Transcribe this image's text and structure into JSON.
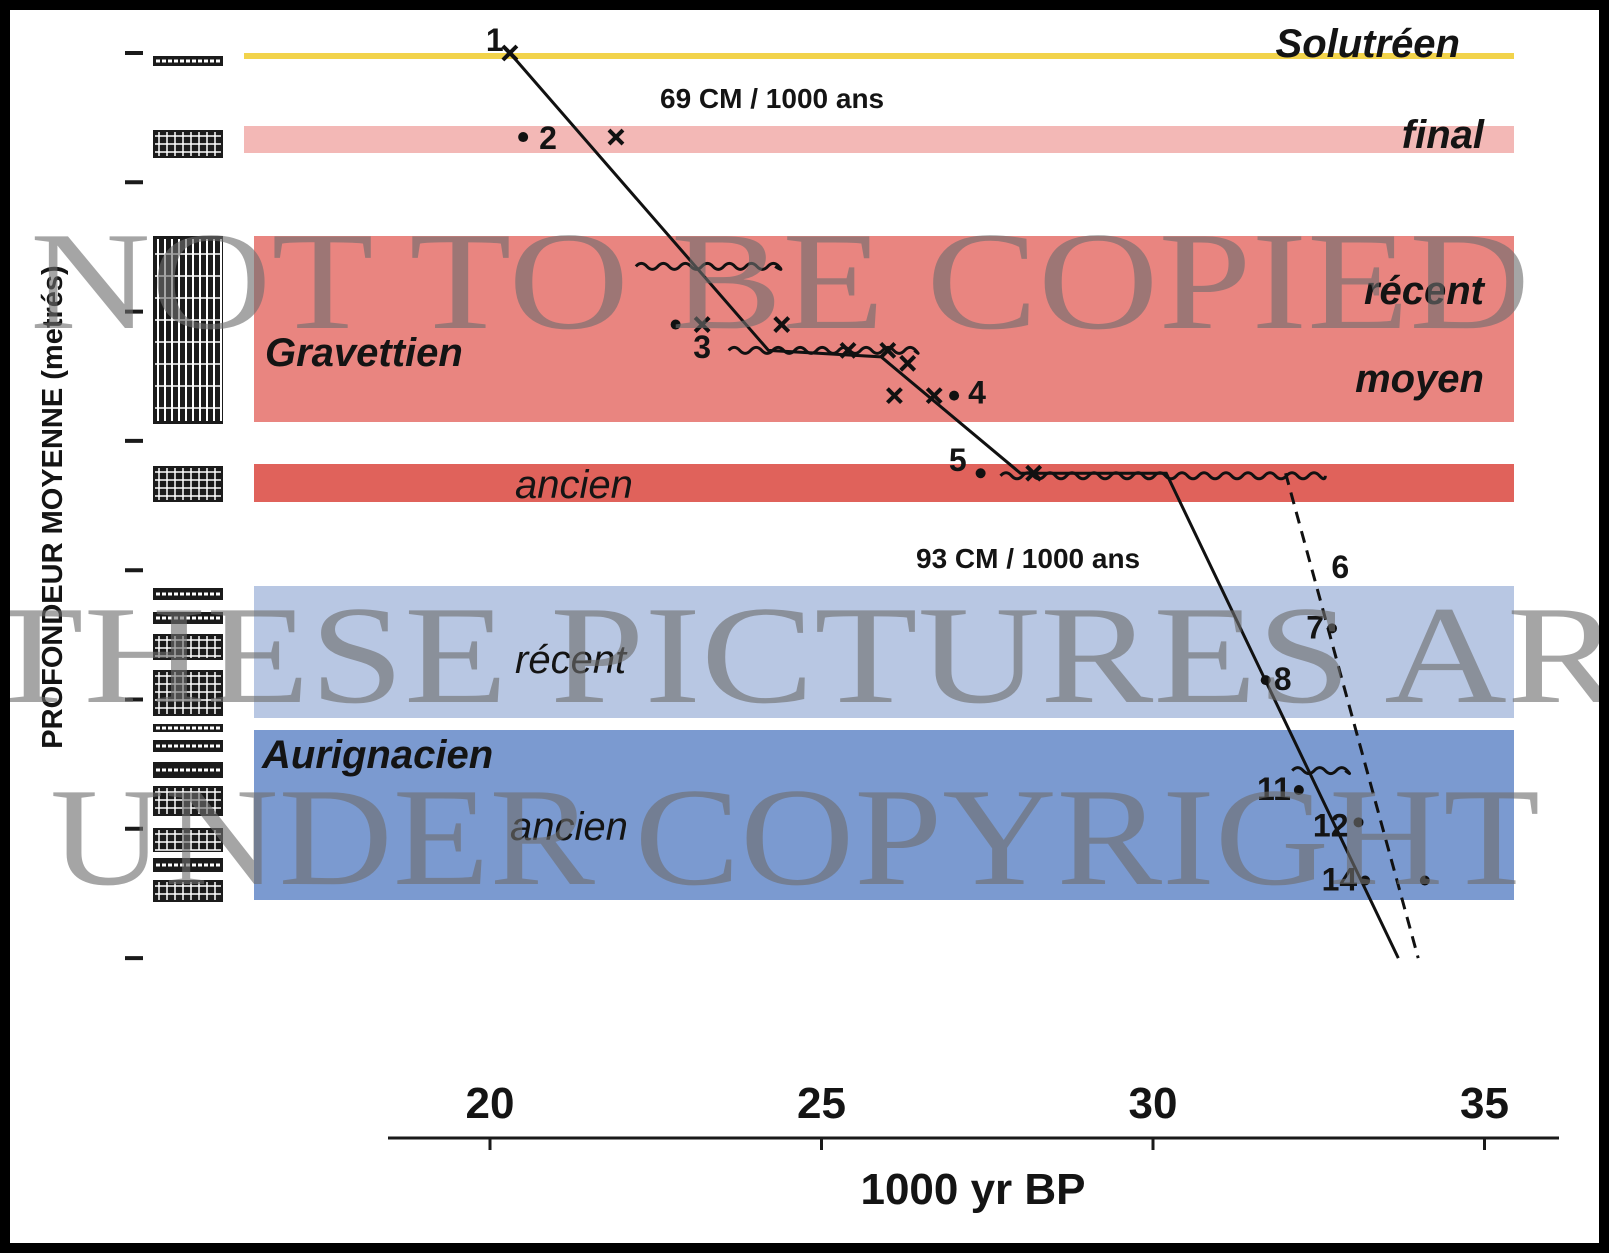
{
  "chart_data": {
    "type": "scatter",
    "xlabel": "1000 yr BP",
    "ylabel": "PROFONDEUR MOYENNE (metrés)",
    "xlim": [
      17.5,
      36
    ],
    "x_ticks": [
      20,
      25,
      30,
      35
    ],
    "y_ticks_count": 8,
    "bands": [
      {
        "name": "solutreen",
        "label": "Solutréen",
        "color": "#f2d34b"
      },
      {
        "name": "final",
        "label": "final",
        "color": "#f3b8b6"
      },
      {
        "name": "gravettien",
        "label": "Gravettien",
        "sublabels": [
          "récent",
          "moyen"
        ],
        "color": "#e98580"
      },
      {
        "name": "gravettien-ancien",
        "label": "ancien",
        "color": "#e0625b"
      },
      {
        "name": "aurignacien-recent",
        "label": "récent",
        "color": "#b8c7e3"
      },
      {
        "name": "aurignacien-ancien",
        "label": "ancien",
        "group_label": "Aurignacien",
        "color": "#7b9ad0"
      }
    ],
    "rates": [
      {
        "label": "69 CM / 1000 ans"
      },
      {
        "label": "93 CM / 1000 ans"
      }
    ],
    "labeled_points": [
      {
        "label": "1",
        "x": 20.3,
        "y": 0.0,
        "marker": "x"
      },
      {
        "label": "2",
        "x": 20.5,
        "y": 0.65,
        "marker": "dot"
      },
      {
        "label": "3",
        "x": 23.2,
        "y": 2.25,
        "marker": "none"
      },
      {
        "label": "4",
        "x": 27.0,
        "y": 2.65,
        "marker": "dot"
      },
      {
        "label": "5",
        "x": 27.4,
        "y": 3.25,
        "marker": "dot"
      },
      {
        "label": "6",
        "x": 32.6,
        "y": 4.0,
        "marker": "none"
      },
      {
        "label": "7",
        "x": 32.7,
        "y": 4.45,
        "marker": "dot"
      },
      {
        "label": "8",
        "x": 31.7,
        "y": 4.85,
        "marker": "dot"
      },
      {
        "label": "11",
        "x": 32.2,
        "y": 5.7,
        "marker": "dot"
      },
      {
        "label": "12",
        "x": 33.1,
        "y": 5.95,
        "marker": "dot"
      },
      {
        "label": "14",
        "x": 33.2,
        "y": 6.4,
        "marker": "dot"
      }
    ],
    "extra_points": [
      {
        "x": 21.9,
        "y": 0.65,
        "marker": "x"
      },
      {
        "x": 22.8,
        "y": 2.1,
        "marker": "dot"
      },
      {
        "x": 23.2,
        "y": 2.1,
        "marker": "x"
      },
      {
        "x": 24.4,
        "y": 2.1,
        "marker": "x"
      },
      {
        "x": 25.4,
        "y": 2.3,
        "marker": "x"
      },
      {
        "x": 26.0,
        "y": 2.3,
        "marker": "x"
      },
      {
        "x": 26.3,
        "y": 2.4,
        "marker": "x"
      },
      {
        "x": 26.1,
        "y": 2.65,
        "marker": "x"
      },
      {
        "x": 26.7,
        "y": 2.65,
        "marker": "x"
      },
      {
        "x": 28.2,
        "y": 3.25,
        "marker": "x"
      },
      {
        "x": 34.1,
        "y": 6.4,
        "marker": "dot"
      }
    ],
    "regression_lines": [
      {
        "style": "solid",
        "points": [
          [
            20.3,
            0.0
          ],
          [
            24.2,
            2.3
          ],
          [
            25.9,
            2.35
          ],
          [
            28.0,
            3.25
          ],
          [
            30.2,
            3.25
          ],
          [
            33.7,
            7.0
          ]
        ]
      },
      {
        "style": "dashed",
        "points": [
          [
            32.0,
            3.25
          ],
          [
            34.0,
            7.0
          ]
        ]
      }
    ],
    "hiatus_lines": [
      {
        "x_from": 22.2,
        "x_to": 24.3,
        "y": 1.65
      },
      {
        "x_from": 23.6,
        "x_to": 26.4,
        "y": 2.3
      },
      {
        "x_from": 27.7,
        "x_to": 32.6,
        "y": 3.27
      },
      {
        "x_from": 32.1,
        "x_to": 32.9,
        "y": 5.55
      }
    ]
  },
  "watermark": {
    "line1": "NOT TO BE COPIED",
    "line2": "THESE PICTURES AR",
    "line3": "UNDER COPYRIGHT"
  }
}
